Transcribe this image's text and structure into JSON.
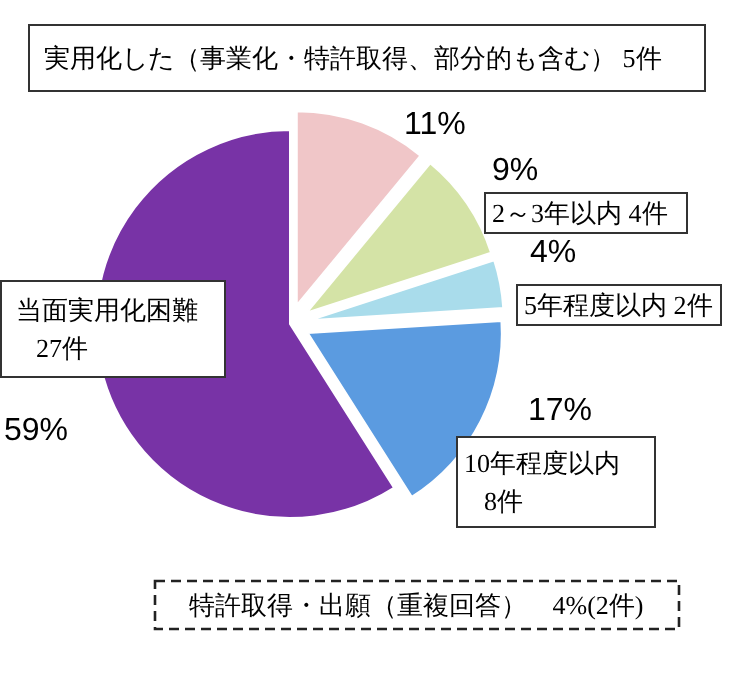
{
  "chart_data": {
    "type": "pie",
    "categories": [
      "実用化した（事業化・特許取得、部分的も含む） 5件",
      "2～3年以内 4件",
      "5年程度以内 2件",
      "10年程度以内\n8件",
      "当面実用化困難\n27件"
    ],
    "values": [
      11,
      9,
      4,
      17,
      59
    ],
    "colors": [
      "#f0c6c8",
      "#d4e3a6",
      "#a9dceb",
      "#5b9be0",
      "#7833a6"
    ],
    "value_labels": [
      "11%",
      "9%",
      "4%",
      "17%",
      "59%"
    ],
    "annotations": [
      "特許取得・出願（重複回答）　4%(2件)"
    ]
  }
}
